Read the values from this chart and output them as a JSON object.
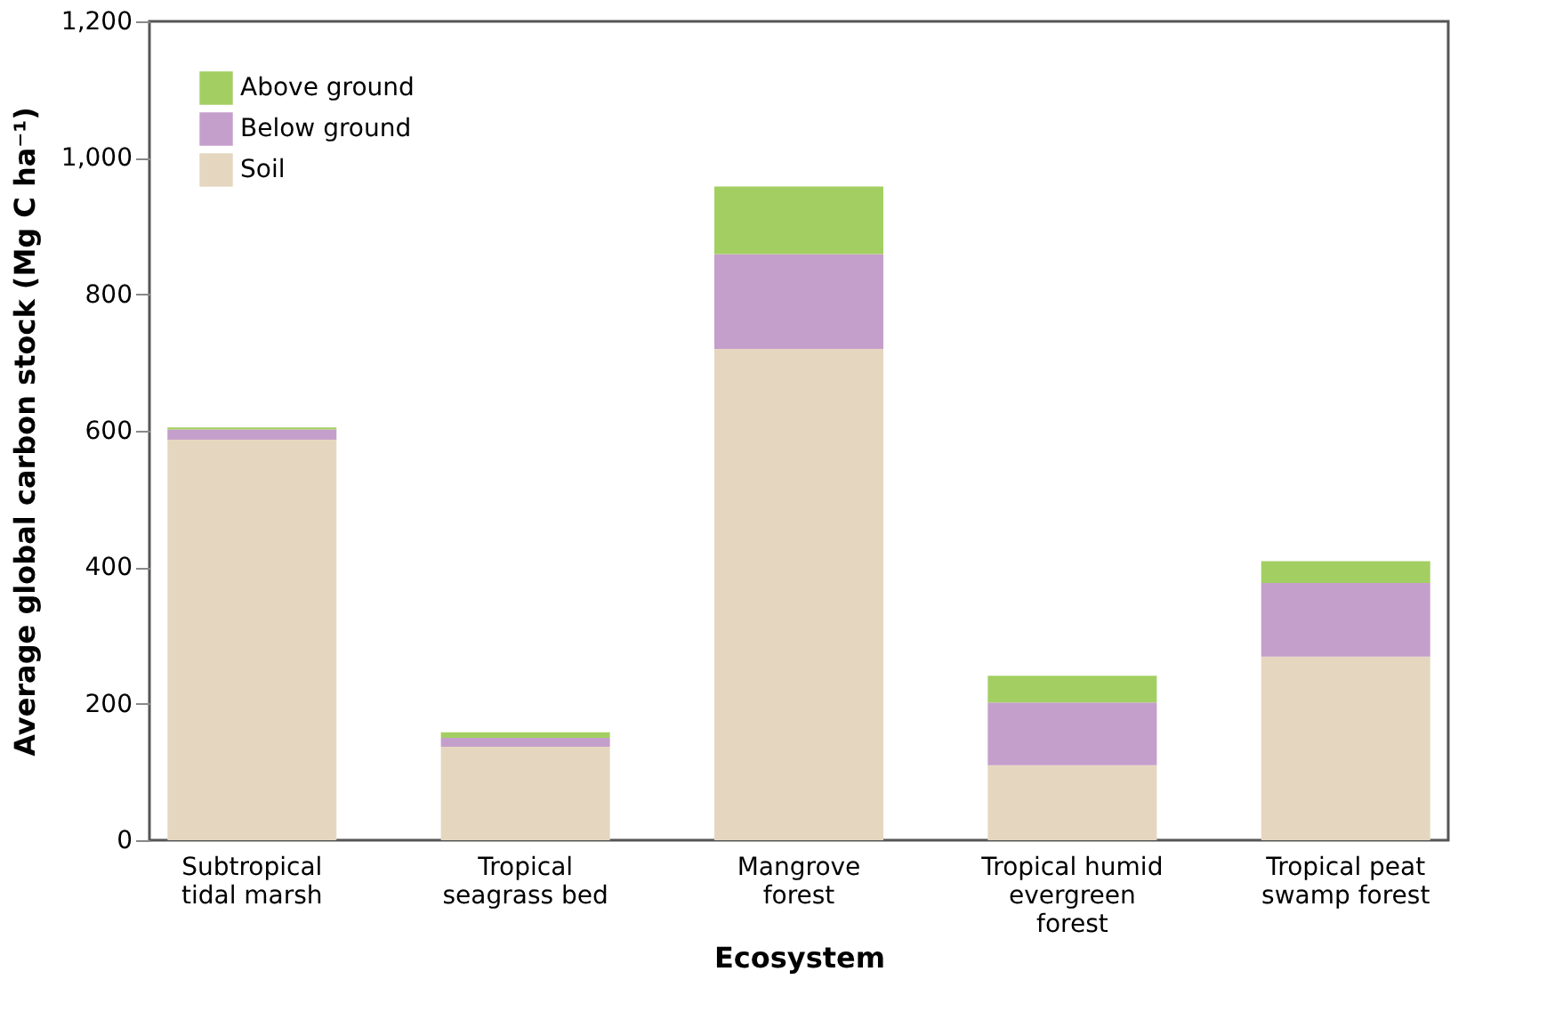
{
  "chart_data": {
    "type": "bar",
    "stacked": true,
    "xlabel": "Ecosystem",
    "ylabel": "Average global carbon stock (Mg C ha⁻¹)",
    "categories": [
      "Subtropical tidal marsh",
      "Tropical seagrass bed",
      "Mangrove forest",
      "Tropical humid evergreen forest",
      "Tropical peat swamp forest"
    ],
    "series": [
      {
        "name": "Soil",
        "color": "#e5d7bf",
        "values": [
          587,
          137,
          720,
          110,
          269
        ]
      },
      {
        "name": "Below ground",
        "color": "#c59fcb",
        "values": [
          15,
          13,
          139,
          92,
          108
        ]
      },
      {
        "name": "Above ground",
        "color": "#a3cf62",
        "values": [
          3,
          8,
          99,
          39,
          32
        ]
      }
    ],
    "ylim": [
      0,
      1200
    ],
    "yticks": [
      0,
      {
        "value": 200,
        "label": "200"
      },
      {
        "value": 400,
        "label": "400"
      },
      {
        "value": 600,
        "label": "600"
      },
      {
        "value": 800,
        "label": "800"
      },
      {
        "value": 1000,
        "label": "1,000"
      },
      {
        "value": 1200,
        "label": "1,200"
      }
    ],
    "grid": false,
    "legend": "top left"
  }
}
